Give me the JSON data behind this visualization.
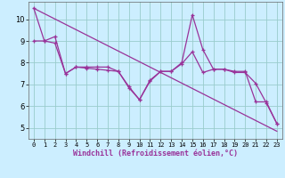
{
  "xlabel": "Windchill (Refroidissement éolien,°C)",
  "xlim": [
    -0.5,
    23.5
  ],
  "ylim": [
    4.5,
    10.8
  ],
  "yticks": [
    5,
    6,
    7,
    8,
    9,
    10
  ],
  "xticks": [
    0,
    1,
    2,
    3,
    4,
    5,
    6,
    7,
    8,
    9,
    10,
    11,
    12,
    13,
    14,
    15,
    16,
    17,
    18,
    19,
    20,
    21,
    22,
    23
  ],
  "background_color": "#cceeff",
  "grid_color": "#99cccc",
  "line_color": "#993399",
  "line1_x": [
    0,
    1,
    2,
    3,
    4,
    5,
    6,
    7,
    8,
    9,
    10,
    11,
    12,
    13,
    14,
    15,
    16,
    17,
    18,
    19,
    20,
    21,
    22,
    23
  ],
  "line1_y": [
    10.5,
    9.0,
    9.2,
    7.5,
    7.8,
    7.8,
    7.8,
    7.8,
    7.6,
    6.85,
    6.3,
    7.2,
    7.6,
    7.6,
    8.0,
    10.2,
    8.6,
    7.7,
    7.7,
    7.6,
    7.6,
    6.2,
    6.2,
    5.2
  ],
  "line2_x": [
    0,
    1,
    2,
    3,
    4,
    5,
    6,
    7,
    8,
    9,
    10,
    11,
    12,
    13,
    14,
    15,
    16,
    17,
    18,
    19,
    20,
    21,
    22,
    23
  ],
  "line2_y": [
    9.0,
    9.0,
    8.9,
    7.5,
    7.8,
    7.75,
    7.7,
    7.65,
    7.6,
    6.9,
    6.3,
    7.15,
    7.6,
    7.6,
    7.95,
    8.5,
    7.55,
    7.7,
    7.7,
    7.55,
    7.55,
    7.05,
    6.15,
    5.2
  ],
  "line3_x": [
    0,
    23
  ],
  "line3_y": [
    10.5,
    4.85
  ]
}
